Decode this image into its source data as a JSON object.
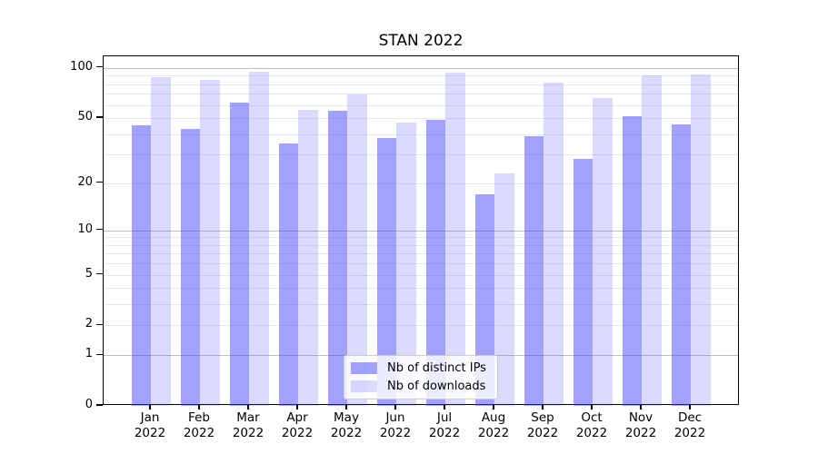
{
  "figure": {
    "background": "#ffffff",
    "text_color": "#000000",
    "spine_color": "#000000"
  },
  "chart_data": {
    "type": "bar",
    "title": "STAN 2022",
    "categories": [
      [
        "Jan",
        "2022"
      ],
      [
        "Feb",
        "2022"
      ],
      [
        "Mar",
        "2022"
      ],
      [
        "Apr",
        "2022"
      ],
      [
        "May",
        "2022"
      ],
      [
        "Jun",
        "2022"
      ],
      [
        "Jul",
        "2022"
      ],
      [
        "Aug",
        "2022"
      ],
      [
        "Sep",
        "2022"
      ],
      [
        "Oct",
        "2022"
      ],
      [
        "Nov",
        "2022"
      ],
      [
        "Dec",
        "2022"
      ]
    ],
    "series": [
      {
        "name": "Nb of distinct IPs",
        "color": "#4646fa",
        "alpha": 0.5,
        "values": [
          45,
          43,
          62,
          35,
          55,
          38,
          49,
          17,
          39,
          28,
          51,
          46
        ]
      },
      {
        "name": "Nb of downloads",
        "color": "#4646fa",
        "alpha": 0.2,
        "values": [
          88,
          85,
          95,
          56,
          69,
          47,
          94,
          23,
          82,
          66,
          90,
          92
        ]
      }
    ],
    "xlabel": "",
    "ylabel": "",
    "yscale": "log1p",
    "ylim": [
      0,
      117.5
    ],
    "yticks": [
      0,
      1,
      2,
      5,
      10,
      20,
      50,
      100
    ],
    "ytick_labels": [
      "0",
      "1",
      "2",
      "5",
      "10",
      "20",
      "50",
      "100"
    ],
    "grid": {
      "major": [
        1,
        10,
        100
      ],
      "minor": [
        2,
        3,
        4,
        5,
        6,
        7,
        8,
        9,
        20,
        30,
        40,
        50,
        60,
        70,
        80,
        90
      ],
      "major_color": "#bfbfbf",
      "minor_color": "#e9e9e9"
    },
    "legend": {
      "position": "lower center",
      "background": "#ffffff",
      "border_color": "#cccccc"
    }
  }
}
